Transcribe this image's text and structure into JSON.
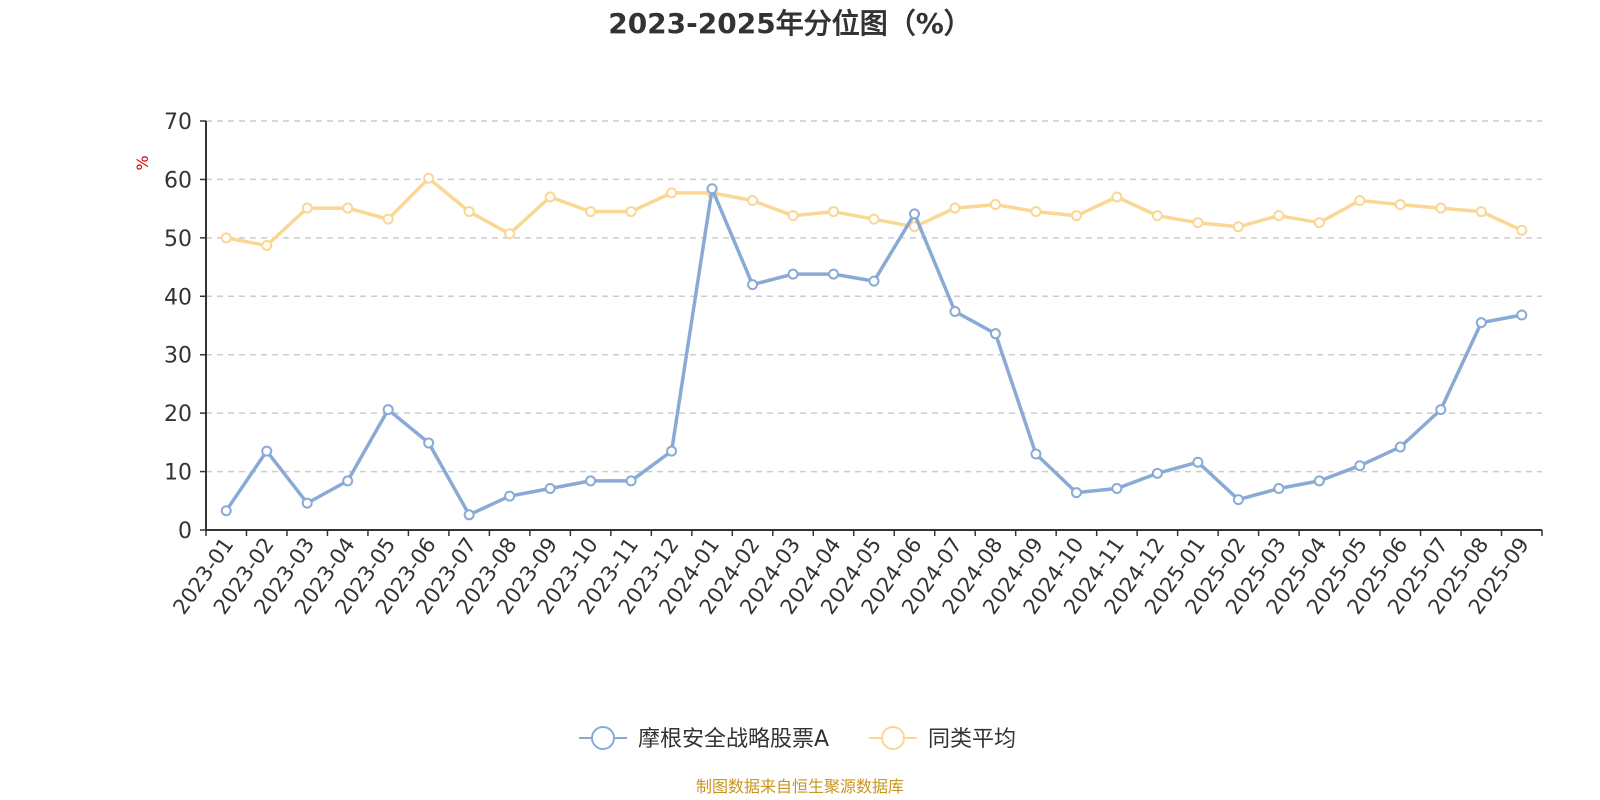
{
  "chart_data": {
    "type": "line",
    "title": "2023-2025年分位图（%）",
    "ylabel": "%",
    "xlabel": "",
    "ylim": [
      0,
      70
    ],
    "yticks": [
      0,
      10,
      20,
      30,
      40,
      50,
      60,
      70
    ],
    "grid": true,
    "legend_position": "bottom-center",
    "categories": [
      "2023-01",
      "2023-02",
      "2023-03",
      "2023-04",
      "2023-05",
      "2023-06",
      "2023-07",
      "2023-08",
      "2023-09",
      "2023-10",
      "2023-11",
      "2023-12",
      "2024-01",
      "2024-02",
      "2024-03",
      "2024-04",
      "2024-05",
      "2024-06",
      "2024-07",
      "2024-08",
      "2024-09",
      "2024-10",
      "2024-11",
      "2024-12",
      "2025-01",
      "2025-02",
      "2025-03",
      "2025-04",
      "2025-05",
      "2025-06",
      "2025-07",
      "2025-08",
      "2025-09"
    ],
    "series": [
      {
        "name": "摩根安全战略股票A",
        "color": "#8aaad6",
        "values": [
          3.3,
          13.5,
          4.6,
          8.4,
          20.6,
          14.9,
          2.6,
          5.8,
          7.1,
          8.4,
          8.4,
          13.5,
          58.4,
          42.0,
          43.8,
          43.8,
          42.6,
          54.1,
          37.4,
          33.6,
          13.0,
          6.4,
          7.1,
          9.7,
          11.6,
          5.2,
          7.1,
          8.4,
          11.0,
          14.2,
          20.6,
          35.5,
          36.8
        ]
      },
      {
        "name": "同类平均",
        "color": "#fad794",
        "values": [
          50.0,
          48.7,
          55.1,
          55.1,
          53.2,
          60.2,
          54.5,
          50.7,
          57.0,
          54.5,
          54.5,
          57.7,
          57.7,
          56.4,
          53.8,
          54.5,
          53.2,
          51.9,
          55.1,
          55.7,
          54.5,
          53.8,
          57.0,
          53.8,
          52.6,
          51.9,
          53.8,
          52.6,
          56.4,
          55.7,
          55.1,
          54.5,
          51.3
        ]
      }
    ],
    "source": "制图数据来自恒生聚源数据库"
  }
}
